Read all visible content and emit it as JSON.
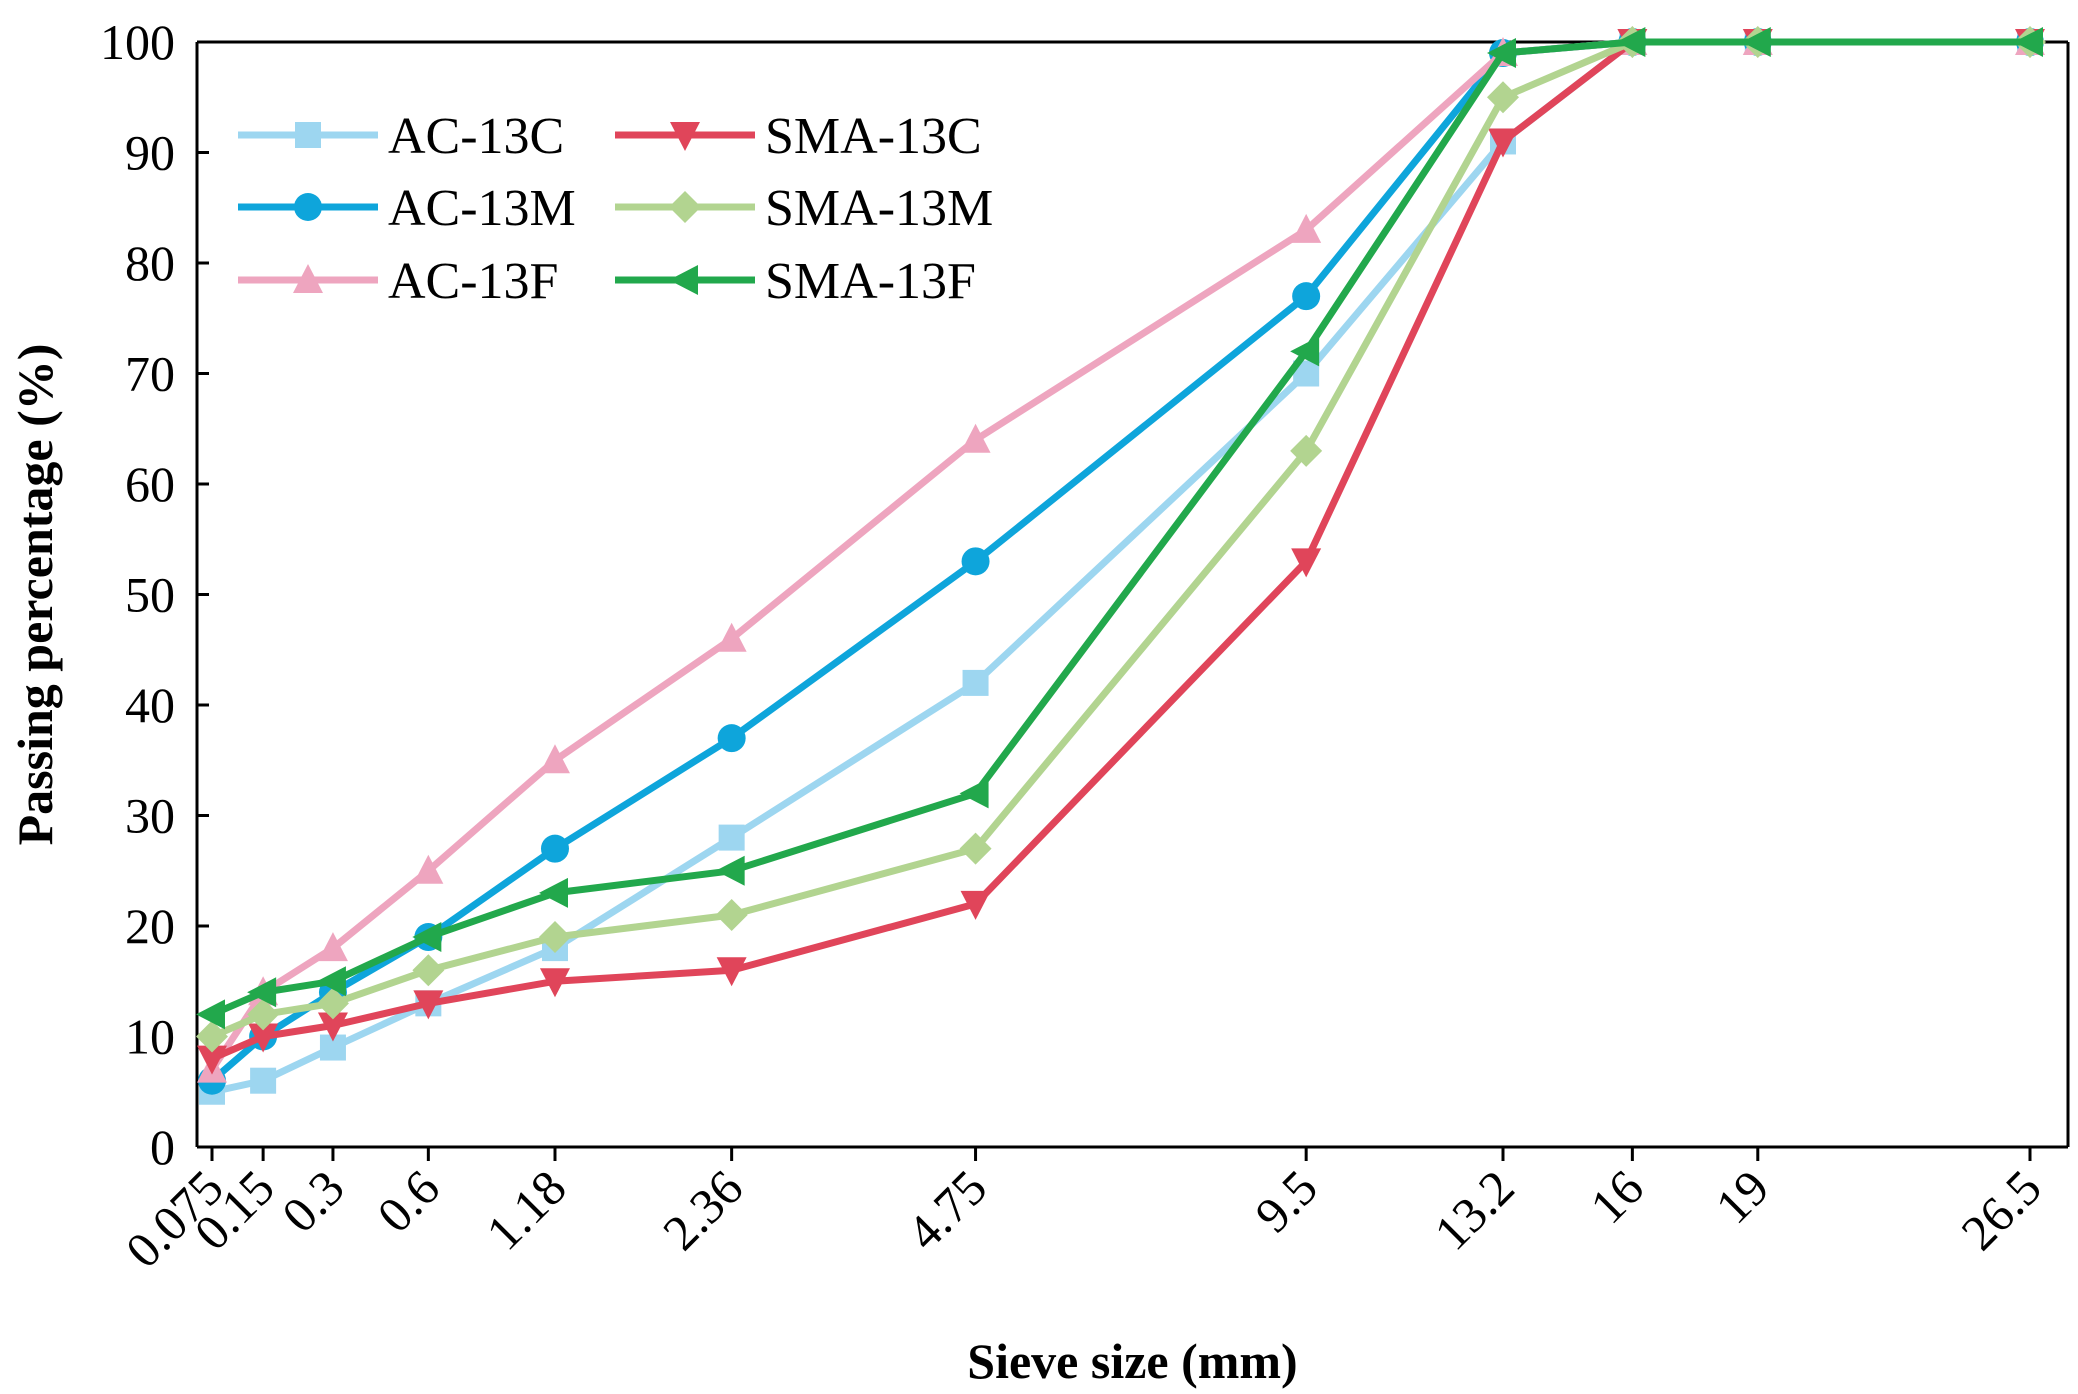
{
  "chart_data": {
    "type": "line",
    "xlabel": "Sieve size (mm)",
    "ylabel": "Passing percentage (%)",
    "ylim": [
      0,
      100
    ],
    "yticks": [
      0,
      10,
      20,
      30,
      40,
      50,
      60,
      70,
      80,
      90,
      100
    ],
    "x_scale": "power-0.45",
    "categories": [
      "0.075",
      "0.15",
      "0.3",
      "0.6",
      "1.18",
      "2.36",
      "4.75",
      "9.5",
      "13.2",
      "16",
      "19",
      "26.5"
    ],
    "x": [
      0.075,
      0.15,
      0.3,
      0.6,
      1.18,
      2.36,
      4.75,
      9.5,
      13.2,
      16,
      19,
      26.5
    ],
    "grid": false,
    "legend_position": "top-left",
    "series": [
      {
        "name": "AC-13C",
        "color": "#9dd6f0",
        "marker": "square",
        "values": [
          5,
          6,
          9,
          13,
          18,
          28,
          42,
          70,
          91,
          100,
          100,
          100
        ]
      },
      {
        "name": "AC-13M",
        "color": "#0ea5db",
        "marker": "circle",
        "values": [
          6,
          10,
          14,
          19,
          27,
          37,
          53,
          77,
          99,
          100,
          100,
          100
        ]
      },
      {
        "name": "AC-13F",
        "color": "#eea5bf",
        "marker": "triangle-up",
        "values": [
          7,
          14,
          18,
          25,
          35,
          46,
          64,
          83,
          99,
          100,
          100,
          100
        ]
      },
      {
        "name": "SMA-13C",
        "color": "#e0455a",
        "marker": "triangle-down",
        "values": [
          8,
          10,
          11,
          13,
          15,
          16,
          22,
          53,
          91,
          100,
          100,
          100
        ]
      },
      {
        "name": "SMA-13M",
        "color": "#b2d490",
        "marker": "diamond",
        "values": [
          10,
          12,
          13,
          16,
          19,
          21,
          27,
          63,
          95,
          100,
          100,
          100
        ]
      },
      {
        "name": "SMA-13F",
        "color": "#22a84c",
        "marker": "triangle-left",
        "values": [
          12,
          14,
          15,
          19,
          23,
          25,
          32,
          72,
          99,
          100,
          100,
          100
        ]
      }
    ]
  }
}
